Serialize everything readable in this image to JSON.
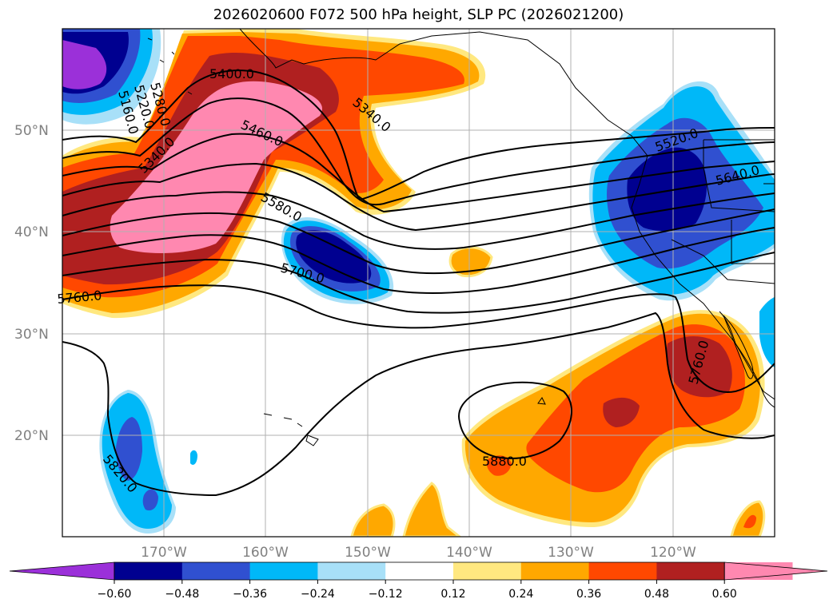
{
  "title": "2026020600 F072 500 hPa height, SLP PC (2026021200)",
  "lat_labels": [
    "50°N",
    "40°N",
    "30°N",
    "20°N"
  ],
  "lon_labels": [
    "170°W",
    "160°W",
    "150°W",
    "140°W",
    "130°W",
    "120°W"
  ],
  "colorbar": {
    "ticks": [
      "−0.60",
      "−0.48",
      "−0.36",
      "−0.24",
      "−0.12",
      "0.12",
      "0.24",
      "0.36",
      "0.48",
      "0.60"
    ],
    "colors": [
      "#9b30d9",
      "#000090",
      "#3050d0",
      "#00b8f8",
      "#a8e0f8",
      "#ffffff",
      "#ffe880",
      "#ffa800",
      "#ff4800",
      "#b02020",
      "#ff88b0",
      "#ff88b0"
    ]
  },
  "contour_labels": [
    "5400.0",
    "5340.0",
    "5460.0",
    "5340.0",
    "5280.0",
    "5220.0",
    "5160.0",
    "5580.0",
    "5700.0",
    "5760.0",
    "5520.0",
    "5640.0",
    "5760.0",
    "5880.0",
    "5820.0"
  ]
}
